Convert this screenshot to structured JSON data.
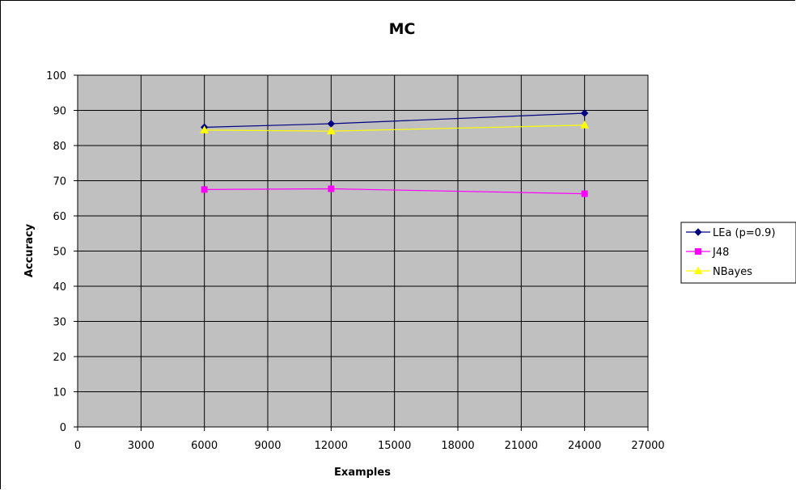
{
  "chart_data": {
    "type": "line",
    "title": "MC",
    "xlabel": "Examples",
    "ylabel": "Accuracy",
    "xlim": [
      0,
      27000
    ],
    "ylim": [
      0,
      100
    ],
    "x_ticks": [
      "0",
      "3000",
      "6000",
      "9000",
      "12000",
      "15000",
      "18000",
      "21000",
      "24000",
      "27000"
    ],
    "y_ticks": [
      "0",
      "10",
      "20",
      "30",
      "40",
      "50",
      "60",
      "70",
      "80",
      "90",
      "100"
    ],
    "grid": true,
    "plot_background": "#c0c0c0",
    "legend_position": "right",
    "x": [
      6000,
      12000,
      24000
    ],
    "series": [
      {
        "name": "LEa (p=0.9)",
        "values": [
          85.2,
          86.2,
          89.2
        ],
        "color": "#000080",
        "marker": "diamond"
      },
      {
        "name": "J48",
        "values": [
          67.5,
          67.7,
          66.3
        ],
        "color": "#ff00ff",
        "marker": "square"
      },
      {
        "name": "NBayes",
        "values": [
          84.4,
          84.1,
          85.8
        ],
        "color": "#ffff00",
        "marker": "triangle"
      }
    ]
  }
}
